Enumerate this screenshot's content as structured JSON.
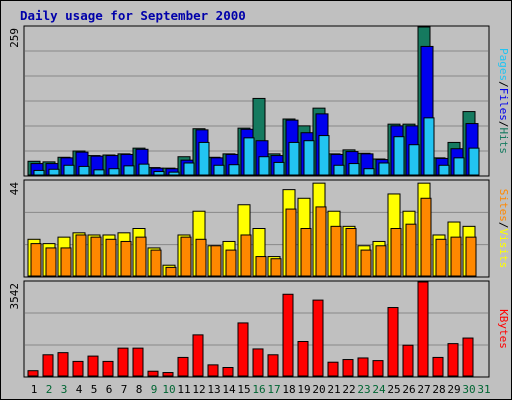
{
  "chart_data": {
    "type": "bar",
    "title": "Daily usage for September 2000",
    "categories": [
      "1",
      "2",
      "3",
      "4",
      "5",
      "6",
      "7",
      "8",
      "9",
      "10",
      "11",
      "12",
      "13",
      "14",
      "15",
      "16",
      "17",
      "18",
      "19",
      "20",
      "21",
      "22",
      "23",
      "24",
      "25",
      "26",
      "27",
      "28",
      "29",
      "30",
      "31"
    ],
    "weekend_days": [
      "2",
      "3",
      "9",
      "10",
      "16",
      "17",
      "23",
      "24",
      "30",
      "31"
    ],
    "colors": {
      "background": "#c0c0c0",
      "title": "#0000aa",
      "hits": "#157a5f",
      "files": "#0000ee",
      "pages": "#22c4f2",
      "visits": "#ffff00",
      "sites": "#ff8800",
      "kbytes": "#ff0000",
      "weekday_label": "#000000",
      "weekend_label": "#006633"
    },
    "panels": [
      {
        "name": "hits-files-pages",
        "ymax_label": "259",
        "ymax": 259,
        "legend": [
          {
            "text": "Hits",
            "color": "#157a5f"
          },
          {
            "text": "Files",
            "color": "#0000ee"
          },
          {
            "text": "Pages",
            "color": "#22c4f2"
          }
        ],
        "series": [
          {
            "name": "Hits",
            "color": "#157a5f",
            "values": [
              24,
              23,
              31,
              42,
              34,
              35,
              37,
              47,
              13,
              12,
              32,
              81,
              31,
              37,
              82,
              134,
              37,
              98,
              86,
              117,
              37,
              44,
              38,
              28,
              89,
              89,
              259,
              30,
              57,
              111,
              0
            ]
          },
          {
            "name": "Files",
            "color": "#0000ee",
            "values": [
              20,
              20,
              30,
              40,
              33,
              34,
              36,
              45,
              12,
              11,
              26,
              79,
              30,
              36,
              80,
              60,
              34,
              96,
              74,
              107,
              36,
              41,
              37,
              27,
              86,
              86,
              225,
              29,
              46,
              90,
              0
            ]
          },
          {
            "name": "Pages",
            "color": "#22c4f2",
            "values": [
              8,
              10,
              17,
              15,
              9,
              11,
              16,
              19,
              6,
              5,
              21,
              57,
              17,
              18,
              65,
              32,
              22,
              57,
              60,
              69,
              17,
              20,
              11,
              21,
              67,
              53,
              100,
              17,
              30,
              47,
              0
            ]
          }
        ]
      },
      {
        "name": "visits-sites",
        "ymax_label": "44",
        "ymax": 44,
        "legend": [
          {
            "text": "Visits",
            "color": "#ffff00"
          },
          {
            "text": "Sites",
            "color": "#ff8800"
          }
        ],
        "series": [
          {
            "name": "Visits",
            "color": "#ffff00",
            "values": [
              17,
              15,
              18,
              20,
              19,
              19,
              20,
              22,
              13,
              5,
              19,
              30,
              14,
              16,
              33,
              22,
              9,
              40,
              36,
              43,
              30,
              23,
              14,
              16,
              38,
              30,
              43,
              19,
              25,
              23,
              0
            ]
          },
          {
            "name": "Sites",
            "color": "#ff8800",
            "values": [
              15,
              13,
              13,
              19,
              18,
              17,
              16,
              18,
              12,
              4,
              18,
              17,
              14,
              12,
              19,
              9,
              8,
              31,
              22,
              32,
              23,
              22,
              12,
              14,
              22,
              24,
              36,
              17,
              18,
              18,
              0
            ]
          }
        ]
      },
      {
        "name": "kbytes",
        "ymax_label": "3542",
        "ymax": 3542,
        "legend": [
          {
            "text": "KBytes",
            "color": "#ff0000"
          }
        ],
        "series": [
          {
            "name": "KBytes",
            "color": "#ff0000",
            "values": [
              200,
              800,
              880,
              550,
              750,
              550,
              1050,
              1050,
              180,
              130,
              700,
              1550,
              420,
              320,
              2000,
              1020,
              800,
              3080,
              1300,
              2860,
              520,
              620,
              680,
              580,
              2580,
              1160,
              3542,
              700,
              1220,
              1430,
              0
            ]
          }
        ]
      }
    ],
    "grid": true
  }
}
